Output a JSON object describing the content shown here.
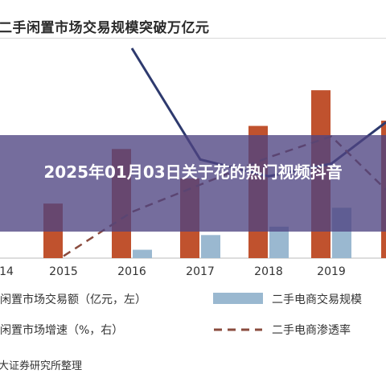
{
  "chart_data": {
    "type": "bar",
    "title": "二手闲置市场交易规模突破万亿元",
    "categories": [
      "14",
      "2015",
      "2016",
      "2017",
      "2018",
      "2019"
    ],
    "series": [
      {
        "name": "闲置市场交易额（亿元，左）",
        "kind": "bar",
        "color": "#c0522e",
        "values": [
          null,
          0.26,
          0.52,
          0.38,
          0.63,
          0.8
        ]
      },
      {
        "name": "二手电商交易规模",
        "kind": "bar",
        "color": "#9ab8d0",
        "values": [
          null,
          0.0,
          0.04,
          0.11,
          0.15,
          0.24
        ]
      },
      {
        "name": "闲置市场增速（%，右）",
        "kind": "line",
        "color": "#2e3a6e",
        "values": [
          null,
          null,
          1.0,
          0.47,
          0.39,
          0.45
        ]
      },
      {
        "name": "二手电商渗透率",
        "kind": "dashed",
        "color": "#8a4b3e",
        "values": [
          null,
          0.01,
          0.22,
          0.35,
          0.48,
          0.58
        ]
      }
    ],
    "grid": false,
    "legend": "bottom"
  },
  "legend": {
    "items": [
      {
        "label": "闲置市场交易额（亿元，左）"
      },
      {
        "label": "二手电商交易规模"
      },
      {
        "label": "闲置市场增速（%，右）"
      },
      {
        "label": "二手电商渗透率"
      }
    ]
  },
  "source": "大证券研究所整理",
  "overlay": {
    "text": "2025年01月03日关于花的热门视频抖音"
  }
}
